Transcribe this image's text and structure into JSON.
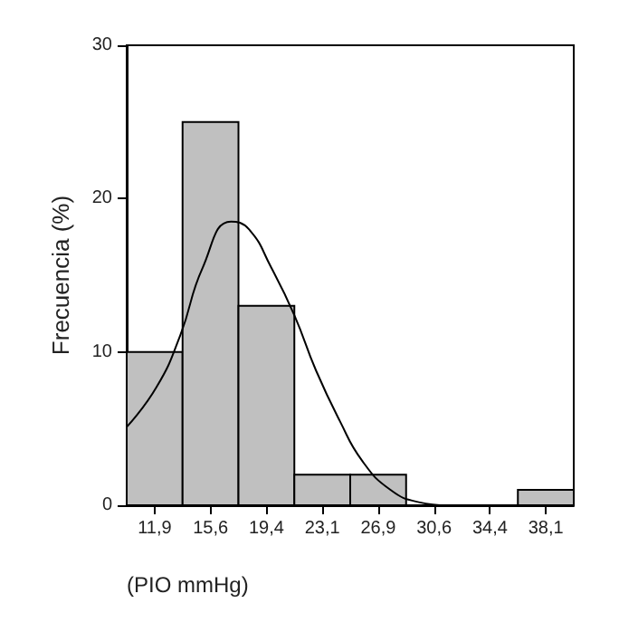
{
  "chart_data": {
    "type": "histogram",
    "xlabel": "(PIO mmHg)",
    "ylabel": "Frecuencia (%)",
    "bins": [
      10,
      13.75,
      17.5,
      21.25,
      25,
      28.75,
      32.5,
      36.25,
      40
    ],
    "values": [
      10,
      25,
      13,
      2,
      2,
      0,
      0,
      1
    ],
    "color": "#c0c0c0",
    "series": [
      {
        "type": "line",
        "color": "#000000",
        "x": [
          10,
          12,
          13.6,
          15.1,
          17,
          18.2,
          19.7,
          21.25,
          22.7,
          24.3,
          25.8,
          27.7,
          29.6,
          31.5
        ],
        "values": [
          5.1,
          7.7,
          11.1,
          15.5,
          18.5,
          18,
          15.5,
          12.4,
          8.8,
          5.5,
          2.9,
          1.0,
          0.2,
          0
        ]
      }
    ],
    "xlim": [
      10,
      40
    ],
    "xticks": [
      {
        "value": 11.875,
        "label": "11,9"
      },
      {
        "value": 15.625,
        "label": "15,6"
      },
      {
        "value": 19.375,
        "label": "19,4"
      },
      {
        "value": 23.125,
        "label": "23,1"
      },
      {
        "value": 26.875,
        "label": "26,9"
      },
      {
        "value": 30.625,
        "label": "30,6"
      },
      {
        "value": 34.375,
        "label": "34,4"
      },
      {
        "value": 38.125,
        "label": "38,1"
      }
    ],
    "ylim": [
      0,
      30
    ],
    "yticks": [
      0,
      10,
      20,
      30
    ],
    "grid": false,
    "marker": "none",
    "line_style": "solid"
  }
}
